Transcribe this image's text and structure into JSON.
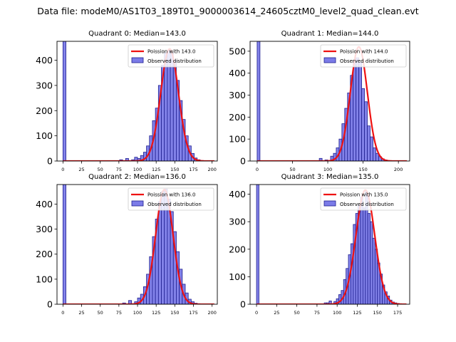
{
  "figure": {
    "suptitle": "Data file: modeM0/AS1T03_189T01_9000003614_24605cztM0_level2_quad_clean.evt"
  },
  "colors": {
    "bar_fill": "#7b7be8",
    "bar_edge": "#1f1f8f",
    "fit_line": "#ee1111"
  },
  "chart_data": [
    {
      "type": "bar",
      "title": "Quadrant 0: Median=143.0",
      "legend": [
        "Poission with 143.0",
        "Observed distribution"
      ],
      "legend_position": "top-right",
      "xlim": [
        -8,
        207
      ],
      "ylim": [
        0,
        475
      ],
      "xticks": [
        0,
        25,
        50,
        75,
        100,
        125,
        150,
        175,
        200
      ],
      "yticks": [
        0,
        100,
        200,
        300,
        400
      ],
      "bin_width": 4,
      "bins_x": [
        0,
        76,
        84,
        92,
        96,
        100,
        104,
        108,
        112,
        116,
        120,
        124,
        128,
        132,
        136,
        140,
        144,
        148,
        152,
        156,
        160,
        164,
        168,
        172,
        176,
        180,
        184
      ],
      "bins_y": [
        600,
        5,
        10,
        5,
        15,
        10,
        22,
        35,
        60,
        100,
        160,
        210,
        300,
        380,
        430,
        440,
        430,
        400,
        320,
        240,
        165,
        100,
        60,
        30,
        12,
        5,
        2
      ],
      "poisson_mean": 143.0,
      "poisson_peak": 445
    },
    {
      "type": "bar",
      "title": "Quadrant 1: Median=144.0",
      "legend": [
        "Poission with 144.0",
        "Observed distribution"
      ],
      "legend_position": "top-right",
      "xlim": [
        -10,
        216
      ],
      "ylim": [
        0,
        545
      ],
      "xticks": [
        0,
        50,
        100,
        150,
        200
      ],
      "yticks": [
        0,
        100,
        200,
        300,
        400,
        500
      ],
      "bin_width": 4,
      "bins_x": [
        0,
        88,
        96,
        104,
        108,
        112,
        116,
        120,
        124,
        128,
        132,
        136,
        140,
        144,
        148,
        152,
        156,
        160,
        164,
        168,
        172,
        176,
        180,
        184
      ],
      "bins_y": [
        600,
        12,
        5,
        22,
        35,
        60,
        100,
        170,
        240,
        310,
        390,
        460,
        470,
        450,
        330,
        270,
        160,
        110,
        60,
        35,
        20,
        10,
        5,
        2
      ],
      "poisson_mean": 144.0,
      "poisson_peak": 520
    },
    {
      "type": "bar",
      "title": "Quadrant 2: Median=136.0",
      "legend": [
        "Poission with 136.0",
        "Observed distribution"
      ],
      "legend_position": "top-right",
      "xlim": [
        -8,
        207
      ],
      "ylim": [
        0,
        478
      ],
      "xticks": [
        0,
        25,
        50,
        75,
        100,
        125,
        150,
        175,
        200
      ],
      "yticks": [
        0,
        100,
        200,
        300,
        400
      ],
      "bin_width": 4,
      "bins_x": [
        0,
        80,
        88,
        96,
        100,
        104,
        108,
        112,
        116,
        120,
        124,
        128,
        132,
        136,
        140,
        144,
        148,
        152,
        156,
        160,
        164,
        168,
        172,
        176,
        180
      ],
      "bins_y": [
        600,
        5,
        15,
        10,
        25,
        40,
        70,
        120,
        190,
        270,
        340,
        410,
        450,
        460,
        420,
        370,
        290,
        210,
        140,
        80,
        45,
        20,
        10,
        4,
        2
      ],
      "poisson_mean": 136.0,
      "poisson_peak": 458
    },
    {
      "type": "bar",
      "title": "Quadrant 3: Median=135.0",
      "legend": [
        "Poission with 135.0",
        "Observed distribution"
      ],
      "legend_position": "top-right",
      "xlim": [
        -8,
        190
      ],
      "ylim": [
        0,
        435
      ],
      "xticks": [
        0,
        25,
        50,
        75,
        100,
        125,
        150,
        175
      ],
      "yticks": [
        0,
        100,
        200,
        300,
        400
      ],
      "bin_width": 3,
      "bins_x": [
        0,
        84,
        87,
        90,
        96,
        99,
        102,
        105,
        108,
        111,
        114,
        117,
        120,
        123,
        126,
        129,
        132,
        135,
        138,
        141,
        144,
        147,
        150,
        153,
        156,
        159,
        162,
        165,
        168,
        171,
        174,
        177
      ],
      "bins_y": [
        600,
        5,
        5,
        12,
        10,
        20,
        35,
        50,
        90,
        130,
        180,
        220,
        290,
        330,
        360,
        390,
        350,
        410,
        330,
        300,
        240,
        200,
        150,
        110,
        70,
        45,
        30,
        15,
        8,
        5,
        3,
        1
      ],
      "poisson_mean": 135.0,
      "poisson_peak": 415
    }
  ]
}
